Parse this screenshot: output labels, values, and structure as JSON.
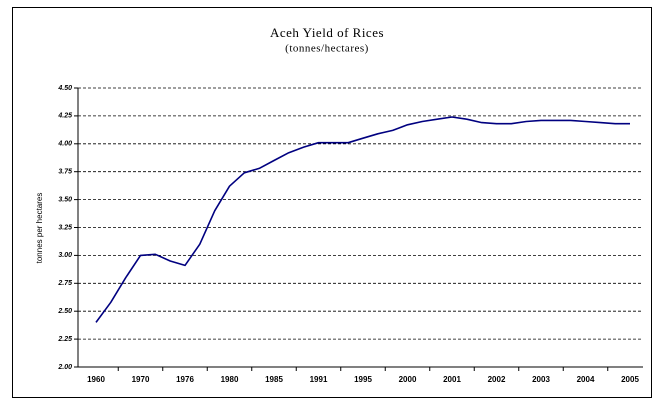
{
  "chart_data": {
    "type": "line",
    "title": "Aceh Yield of Rices",
    "subtitle": "(tonnes/hectares)",
    "y_label": "tonnes per hectares",
    "categories": [
      "1960",
      null,
      null,
      "1970",
      null,
      null,
      "1976",
      null,
      null,
      "1980",
      null,
      null,
      "1985",
      null,
      null,
      "1991",
      null,
      null,
      "1995",
      null,
      null,
      "2000",
      null,
      null,
      "2001",
      null,
      null,
      "2002",
      null,
      null,
      "2003",
      null,
      null,
      "2004",
      null,
      null,
      "2005"
    ],
    "values": [
      2.4,
      2.58,
      2.8,
      3.0,
      3.01,
      2.95,
      2.91,
      3.1,
      3.4,
      3.62,
      3.74,
      3.78,
      3.85,
      3.92,
      3.97,
      4.01,
      4.01,
      4.01,
      4.05,
      4.09,
      4.12,
      4.17,
      4.2,
      4.22,
      4.24,
      4.22,
      4.19,
      4.18,
      4.18,
      4.2,
      4.21,
      4.21,
      4.21,
      4.2,
      4.19,
      4.18,
      4.18
    ],
    "color": "#000080",
    "ylim": [
      2.0,
      4.5
    ],
    "yticks": [
      {
        "value": 2.0,
        "label": "2.00"
      },
      {
        "value": 2.25,
        "label": "2.25"
      },
      {
        "value": 2.5,
        "label": "2.50"
      },
      {
        "value": 2.75,
        "label": "2.75"
      },
      {
        "value": 3.0,
        "label": "3.00"
      },
      {
        "value": 3.25,
        "label": "3.25"
      },
      {
        "value": 3.5,
        "label": "3.50"
      },
      {
        "value": 3.75,
        "label": "3.75"
      },
      {
        "value": 4.0,
        "label": "4.00"
      },
      {
        "value": 4.25,
        "label": "4.25"
      },
      {
        "value": 4.5,
        "label": "4.50"
      }
    ],
    "grid": true
  }
}
